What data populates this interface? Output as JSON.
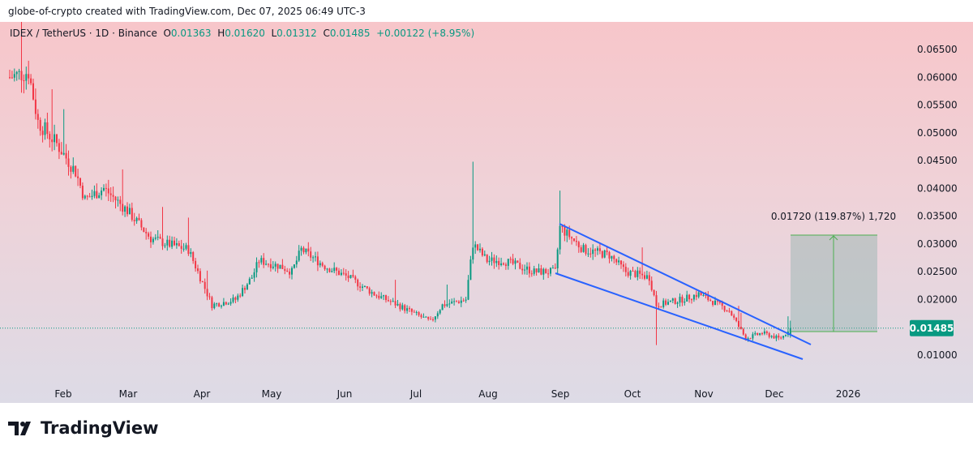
{
  "credit": "globe-of-crypto created with TradingView.com, Dec 07, 2025 06:49 UTC-3",
  "legend": {
    "symbol": "IDEX / TetherUS · 1D · Binance",
    "o_label": "O",
    "o": "0.01363",
    "h_label": "H",
    "h": "0.01620",
    "l_label": "L",
    "l": "0.01312",
    "c_label": "C",
    "c": "0.01485",
    "change": "+0.00122 (+8.95%)"
  },
  "price_axis": [
    "0.06500",
    "0.06000",
    "0.05500",
    "0.05000",
    "0.04500",
    "0.04000",
    "0.03500",
    "0.03000",
    "0.02500",
    "0.02000",
    "0.01000"
  ],
  "current_price": "0.01485",
  "time_axis": [
    "Feb",
    "Mar",
    "Apr",
    "May",
    "Jun",
    "Jul",
    "Aug",
    "Sep",
    "Oct",
    "Nov",
    "Dec",
    "2026"
  ],
  "measure_label": "0.01720 (119.87%) 1,720",
  "colors": {
    "up": "#089981",
    "down": "#f23645",
    "channel": "#2962ff",
    "measure": "#4caf50"
  },
  "chart_data": {
    "type": "candlestick",
    "ylim": [
      0.0065,
      0.068
    ],
    "anchors": [
      [
        0,
        0.06
      ],
      [
        8,
        0.061
      ],
      [
        12,
        0.052
      ],
      [
        20,
        0.048
      ],
      [
        28,
        0.043
      ],
      [
        32,
        0.038
      ],
      [
        40,
        0.04
      ],
      [
        50,
        0.036
      ],
      [
        60,
        0.031
      ],
      [
        67,
        0.03
      ],
      [
        76,
        0.029
      ],
      [
        79,
        0.026
      ],
      [
        86,
        0.019
      ],
      [
        96,
        0.02
      ],
      [
        103,
        0.024
      ],
      [
        106,
        0.027
      ],
      [
        115,
        0.026
      ],
      [
        120,
        0.025
      ],
      [
        124,
        0.029
      ],
      [
        134,
        0.026
      ],
      [
        144,
        0.024
      ],
      [
        155,
        0.021
      ],
      [
        165,
        0.019
      ],
      [
        179,
        0.016
      ],
      [
        184,
        0.019
      ],
      [
        194,
        0.02
      ],
      [
        197,
        0.03
      ],
      [
        203,
        0.027
      ],
      [
        210,
        0.027
      ],
      [
        223,
        0.025
      ],
      [
        232,
        0.025
      ],
      [
        234,
        0.033
      ],
      [
        244,
        0.029
      ],
      [
        255,
        0.028
      ],
      [
        262,
        0.025
      ],
      [
        272,
        0.024
      ],
      [
        275,
        0.019
      ],
      [
        286,
        0.02
      ],
      [
        293,
        0.021
      ],
      [
        306,
        0.018
      ],
      [
        313,
        0.013
      ],
      [
        320,
        0.014
      ],
      [
        327,
        0.013
      ],
      [
        330,
        0.01363
      ],
      [
        332,
        0.01485
      ]
    ]
  }
}
